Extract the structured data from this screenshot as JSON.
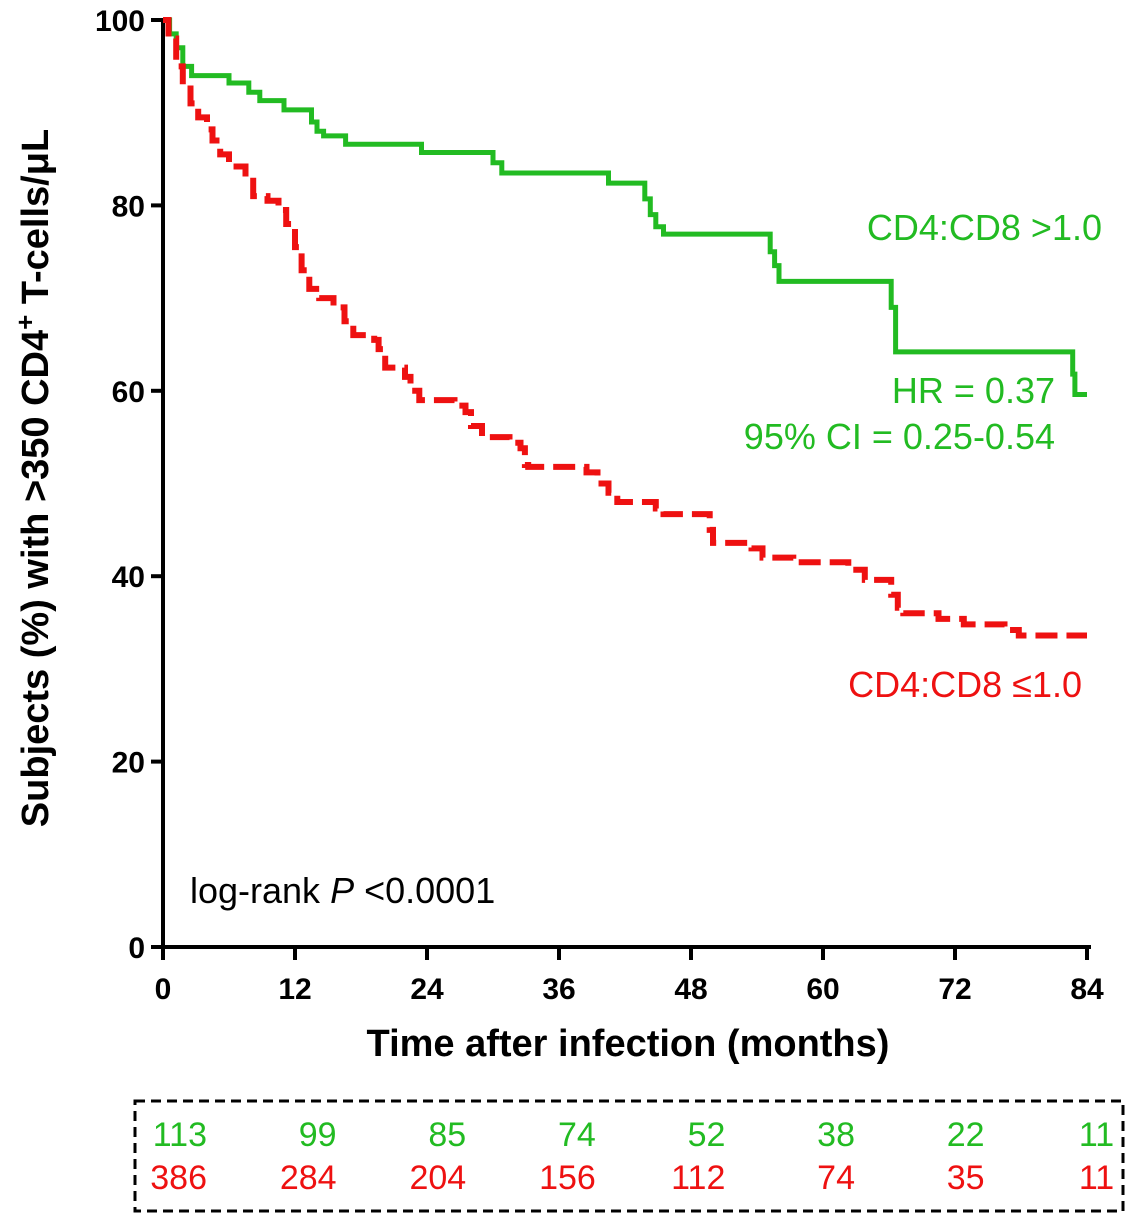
{
  "chart_data": {
    "type": "line",
    "subtype": "kaplan-meier",
    "title": "",
    "xlabel": "Time after infection (months)",
    "ylabel": "Subjects (%) with >350 CD4",
    "ylabel_superscript": "+",
    "ylabel_tail": " T-cells/μL",
    "xlim": [
      0,
      84
    ],
    "ylim": [
      0,
      100
    ],
    "xticks": [
      "0",
      "12",
      "24",
      "36",
      "48",
      "60",
      "72",
      "84"
    ],
    "yticks": [
      "0",
      "20",
      "40",
      "60",
      "80",
      "100"
    ],
    "series": [
      {
        "name": "CD4:CD8 >1.0",
        "color": "#22bb22",
        "style": "solid",
        "points": [
          [
            0,
            100
          ],
          [
            0.6,
            98.5
          ],
          [
            1.2,
            97
          ],
          [
            1.8,
            95
          ],
          [
            2.6,
            94
          ],
          [
            6,
            93.2
          ],
          [
            7.8,
            92.2
          ],
          [
            8.8,
            91.3
          ],
          [
            11,
            90.3
          ],
          [
            13.5,
            89
          ],
          [
            14,
            88
          ],
          [
            14.6,
            87.5
          ],
          [
            16.6,
            86.6
          ],
          [
            23.5,
            85.7
          ],
          [
            30,
            84.6
          ],
          [
            30.8,
            83.5
          ],
          [
            40.5,
            82.4
          ],
          [
            43.8,
            80.7
          ],
          [
            44.3,
            79
          ],
          [
            44.8,
            77.7
          ],
          [
            45.5,
            76.9
          ],
          [
            55.2,
            75
          ],
          [
            55.6,
            73.5
          ],
          [
            56,
            71.8
          ],
          [
            66.2,
            69
          ],
          [
            66.6,
            64.2
          ],
          [
            82.7,
            61.8
          ],
          [
            82.9,
            59.6
          ],
          [
            84,
            59.6
          ]
        ]
      },
      {
        "name": "CD4:CD8 ≤1.0",
        "color": "#ee1111",
        "style": "dashed",
        "points": [
          [
            0,
            100
          ],
          [
            0.5,
            98
          ],
          [
            1.2,
            95
          ],
          [
            1.8,
            93
          ],
          [
            2.5,
            91
          ],
          [
            3.2,
            89.5
          ],
          [
            4,
            88.2
          ],
          [
            4.5,
            87
          ],
          [
            5.2,
            85.5
          ],
          [
            6,
            84.2
          ],
          [
            7.5,
            83
          ],
          [
            8.2,
            81
          ],
          [
            9.5,
            80.5
          ],
          [
            10.5,
            79.5
          ],
          [
            11.2,
            78
          ],
          [
            12,
            75.5
          ],
          [
            12.6,
            73
          ],
          [
            13.3,
            71
          ],
          [
            14.2,
            70
          ],
          [
            15.5,
            69
          ],
          [
            16.5,
            67.5
          ],
          [
            17.3,
            66
          ],
          [
            19.2,
            65.5
          ],
          [
            19.6,
            64.5
          ],
          [
            20.2,
            62.5
          ],
          [
            22,
            61.5
          ],
          [
            22.5,
            60
          ],
          [
            23.3,
            59
          ],
          [
            26.5,
            58.4
          ],
          [
            27.5,
            57.7
          ],
          [
            28,
            56.2
          ],
          [
            29,
            55
          ],
          [
            31.5,
            54.4
          ],
          [
            32.5,
            53.8
          ],
          [
            32.9,
            52
          ],
          [
            33.2,
            51.8
          ],
          [
            38.5,
            51.2
          ],
          [
            39.5,
            50
          ],
          [
            40.5,
            49
          ],
          [
            41.3,
            48
          ],
          [
            44.8,
            47.3
          ],
          [
            45.5,
            46.7
          ],
          [
            49.7,
            45
          ],
          [
            50,
            43.6
          ],
          [
            53.5,
            43
          ],
          [
            54.5,
            42
          ],
          [
            57.3,
            41.5
          ],
          [
            62.3,
            40.7
          ],
          [
            63.8,
            39.6
          ],
          [
            66.2,
            38
          ],
          [
            66.8,
            36.6
          ],
          [
            67.3,
            36
          ],
          [
            70.5,
            35.4
          ],
          [
            72.8,
            34.8
          ],
          [
            76.5,
            34.2
          ],
          [
            77.8,
            33.6
          ],
          [
            84,
            33.6
          ]
        ]
      }
    ],
    "annotations": {
      "green_label": "CD4:CD8 >1.0",
      "red_label": "CD4:CD8 ≤1.0",
      "hr": "HR = 0.37",
      "ci": "95% CI = 0.25-0.54",
      "logrank_prefix": "log-rank ",
      "logrank_p": "P",
      "logrank_value": " <0.0001"
    },
    "at_risk": {
      "green": [
        "113",
        "99",
        "85",
        "74",
        "52",
        "38",
        "22",
        "11"
      ],
      "red": [
        "386",
        "284",
        "204",
        "156",
        "112",
        "74",
        "35",
        "11"
      ]
    }
  }
}
